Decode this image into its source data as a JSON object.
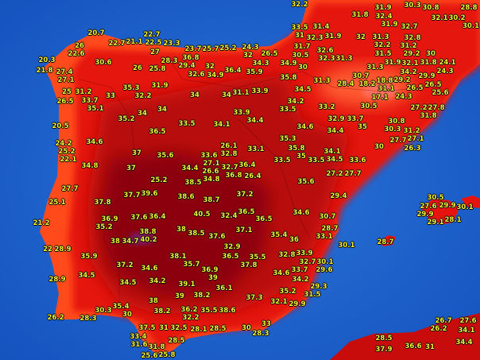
{
  "map": {
    "region": "Iberian Peninsula",
    "colors": {
      "sea": "#1c63cc",
      "coast_orange": "#ff4a1c",
      "land_red": "#e5140f",
      "interior": "#b80a0a",
      "hot_core": "#8c0208",
      "hottest": "#7a1a6a",
      "labels": "#f4f23a"
    },
    "labels": [
      "20.7",
      "22.7",
      "21.1",
      "22.5",
      "23.3",
      "22.7",
      "26",
      "22.6",
      "20.3",
      "30.6",
      "21.8",
      "27.4",
      "27.1",
      "27",
      "26",
      "25.8",
      "28.3",
      "29.4",
      "23.7",
      "25.7",
      "25.2",
      "36.8",
      "32",
      "32.6",
      "34.9",
      "36.4",
      "25",
      "31.2",
      "33.7",
      "33",
      "35.3",
      "32.2",
      "31.9",
      "34",
      "34",
      "26.5",
      "35.1",
      "34",
      "34",
      "35.2",
      "33.5",
      "34.1",
      "36.5",
      "20.5",
      "24.2",
      "25.2",
      "34.6",
      "22.1",
      "37",
      "35.6",
      "33.6",
      "26.1",
      "32.8",
      "34.8",
      "37",
      "34.4",
      "27.1",
      "26.6",
      "32.7",
      "25.2",
      "34.8",
      "36.8",
      "31.1",
      "33.9",
      "36.4",
      "32.2",
      "31.9",
      "32.4",
      "30.3",
      "30.8",
      "28.8",
      "31.8",
      "31.9",
      "32.7",
      "32.1",
      "30.2",
      "30.1",
      "33.5",
      "31.4",
      "31",
      "32.3",
      "31.9",
      "32",
      "31.3",
      "32.2",
      "31.5",
      "32.8",
      "31.2",
      "29.2",
      "31.7",
      "24.3",
      "30.5",
      "26.5",
      "32",
      "32.6",
      "32.3",
      "31.3",
      "31.9",
      "32.1",
      "31.8",
      "30",
      "24.1",
      "34.3",
      "34.9",
      "30",
      "31.3",
      "35.9",
      "35.8",
      "34.2",
      "24.3",
      "31.3",
      "28.4",
      "18.2",
      "30.7",
      "18.8",
      "31.1",
      "29.2",
      "26.5",
      "26.5",
      "29.9",
      "25.6",
      "33.9",
      "34.5",
      "17.1",
      "24.3",
      "30.5",
      "34.2",
      "33.5",
      "33.2",
      "27.2",
      "27.8",
      "31.8",
      "34.4",
      "32.9",
      "33.7",
      "35",
      "30.8",
      "30.3",
      "31.2",
      "34.6",
      "34.4",
      "27.1",
      "27.7",
      "26.3",
      "35.3",
      "33.1",
      "35.8",
      "35",
      "33.5",
      "33.5",
      "34.1",
      "34.5",
      "33.6",
      "30",
      "26.4",
      "27.2",
      "27.7",
      "35.6",
      "27.7",
      "25.1",
      "37.8",
      "37.7",
      "39.6",
      "38.6",
      "38.7",
      "38.5",
      "36.9",
      "35.2",
      "37.6",
      "36.4",
      "40.5",
      "32.4",
      "21.2",
      "38",
      "38.5",
      "37.6",
      "38",
      "34.7",
      "40.2",
      "38.8",
      "22",
      "28.9",
      "32.9",
      "35.9",
      "37.2",
      "34.6",
      "38.1",
      "35.7",
      "36.5",
      "36.9",
      "34.5",
      "28.9",
      "34.5",
      "34.2",
      "39",
      "39.1",
      "36.1",
      "38.2",
      "39",
      "38",
      "35.4",
      "30.3",
      "30",
      "38.2",
      "36.2",
      "32.2",
      "35.5",
      "38.6",
      "26.2",
      "28.3",
      "37.5",
      "31",
      "32.5",
      "28.1",
      "28.5",
      "33.4",
      "31.6",
      "28.5",
      "31.8",
      "25.8",
      "25.6",
      "37.2",
      "29.4",
      "36.5",
      "36.5",
      "34.6",
      "30.7",
      "37.1",
      "28.7",
      "35.4",
      "36",
      "33.1",
      "30.1",
      "32.8",
      "33.9",
      "35.5",
      "32.7",
      "30.1",
      "29.6",
      "37.8",
      "33.7",
      "34.6",
      "34.2",
      "29.3",
      "35.2",
      "31.5",
      "37.3",
      "32.1",
      "29.9",
      "33",
      "30",
      "28.3",
      "28.7",
      "27.6",
      "30.5",
      "29.9",
      "30.1",
      "29.9",
      "29.1",
      "28.1",
      "28.5",
      "37.9",
      "36.6",
      "31",
      "26.7",
      "26.2",
      "27.6",
      "34.1",
      "34.4"
    ]
  }
}
